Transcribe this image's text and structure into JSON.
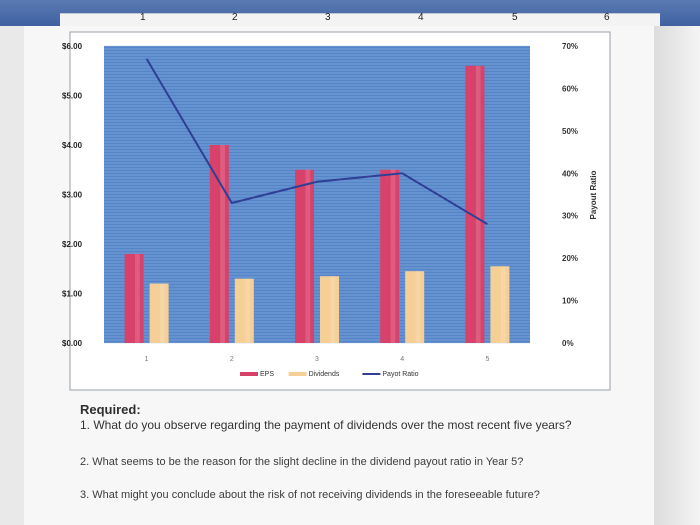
{
  "ruler": {
    "numbers": [
      "1",
      "2",
      "3",
      "4",
      "5",
      "6"
    ]
  },
  "chart_data": {
    "type": "bar",
    "categories": [
      "1",
      "2",
      "3",
      "4",
      "5"
    ],
    "series": [
      {
        "name": "EPS",
        "type": "bar",
        "axis": "left",
        "color": "#d8416a",
        "values": [
          1.8,
          4.0,
          3.5,
          3.5,
          5.6
        ]
      },
      {
        "name": "Dividends",
        "type": "bar",
        "axis": "left",
        "color": "#f5cf95",
        "values": [
          1.2,
          1.3,
          1.35,
          1.45,
          1.55
        ]
      },
      {
        "name": "Payot Ratio",
        "type": "line",
        "axis": "right",
        "color": "#2f3f95",
        "values": [
          67,
          33,
          38,
          40,
          28
        ]
      }
    ],
    "y_left": {
      "min": 0,
      "max": 6,
      "ticks": [
        "$0.00",
        "$1.00",
        "$2.00",
        "$3.00",
        "$4.00",
        "$5.00",
        "$6.00"
      ]
    },
    "y_right": {
      "min": 0,
      "max": 70,
      "label": "Payout Ratio",
      "ticks": [
        "0%",
        "10%",
        "20%",
        "30%",
        "40%",
        "50%",
        "60%",
        "70%"
      ]
    },
    "grid": true,
    "legend_position": "bottom"
  },
  "questions": {
    "heading": "Required:",
    "q1": "1. What do you observe regarding the payment of dividends over the most recent five years?",
    "q2": "2. What seems to be the reason for the slight decline in the dividend payout ratio in Year 5?",
    "q3": "3. What might you conclude about the risk of not receiving dividends in the foreseeable future?"
  }
}
